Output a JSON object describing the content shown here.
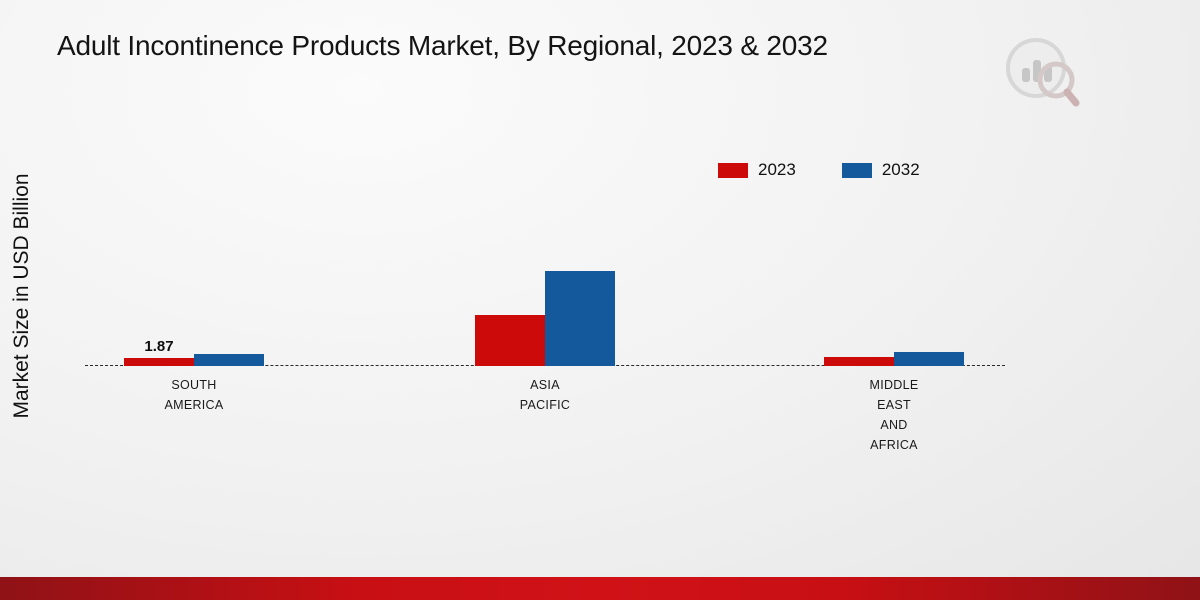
{
  "chart_data": {
    "type": "bar",
    "title": "Adult Incontinence Products Market, By Regional, 2023 & 2032",
    "ylabel": "Market Size in USD Billion",
    "xlabel": "",
    "units": "USD Billion",
    "categories": [
      "SOUTH AMERICA",
      "ASIA PACIFIC",
      "MIDDLE EAST AND AFRICA"
    ],
    "category_label_lines": [
      "SOUTH\nAMERICA",
      "ASIA\nPACIFIC",
      "MIDDLE\nEAST\nAND\nAFRICA"
    ],
    "series": [
      {
        "name": "2023",
        "color": "#cc0a0a",
        "values": [
          1.87,
          12.0,
          2.1
        ],
        "value_labels": [
          "1.87",
          "",
          ""
        ]
      },
      {
        "name": "2032",
        "color": "#14599c",
        "values": [
          2.8,
          22.2,
          3.3
        ],
        "value_labels": [
          "",
          "",
          ""
        ]
      }
    ],
    "legend_position": "top-right",
    "baseline_style": "dashed",
    "gridlines": false,
    "y_axis_ticks": "none"
  },
  "logo": {
    "icon": "bar-chart-magnifier-logo"
  }
}
